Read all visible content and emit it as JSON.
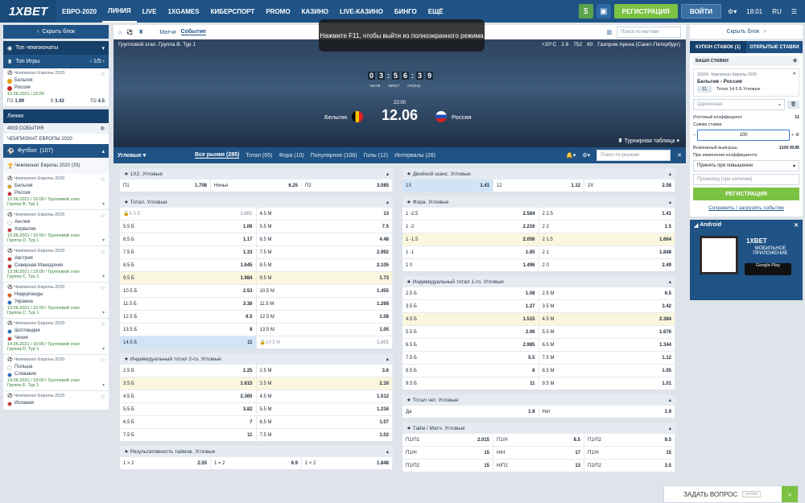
{
  "brand": {
    "logo": "1XBET",
    "accent": "#1f5385",
    "green": "#7cc243"
  },
  "nav": [
    "ЕВРО-2020",
    "ЛИНИЯ",
    "LIVE",
    "1XGAMES",
    "КИБЕРСПОРТ",
    "PROMO",
    "КАЗИНО",
    "LIVE-КАЗИНО",
    "БИНГО",
    "ЕЩЁ"
  ],
  "top": {
    "register": "РЕГИСТРАЦИЯ",
    "login": "ВОЙТИ",
    "time": "18:01",
    "lang": "RU",
    "dollar": "$"
  },
  "tooltip": "Нажмите F11, чтобы выйти из полноэкранного режима",
  "left": {
    "hide": "Скрыть блок",
    "top_champ": "Топ чемпионаты",
    "top_games": "Топ Игры",
    "pager": "1/5",
    "top_match": {
      "league": "Чемпионат Европы 2020",
      "t1": "Бельгия",
      "t2": "Россия",
      "date": "12.06.2021 / 22:00",
      "p1": "П1",
      "v1": "1.99",
      "x": "X",
      "vx": "3.42",
      "p2": "П2",
      "v2": "4.5"
    },
    "line": "Линия",
    "events": "4919 СОБЫТИЯ",
    "champ": "ЧЕМПИОНАТ ЕВРОПЫ 2020",
    "football": "Футбол",
    "football_count": "(107)",
    "euro": "Чемпионат Европы 2020",
    "euro_count": "(33)",
    "matches": [
      {
        "league": "Чемпионат Европы 2020",
        "t1": "Бельгия",
        "t2": "Россия",
        "date": "12.06.2021 / 22:00 / Групповой этап.",
        "grp": "Группа B. Тур 1"
      },
      {
        "league": "Чемпионат Европы 2020",
        "t1": "Англия",
        "t2": "Хорватия",
        "date": "13.06.2021 / 16:00 / Групповой этап.",
        "grp": "Группа D. Тур 1"
      },
      {
        "league": "Чемпионат Европы 2020",
        "t1": "Австрия",
        "t2": "Северная Македония",
        "date": "13.06.2021 / 19:00 / Групповой этап.",
        "grp": "Группа C. Тур 1"
      },
      {
        "league": "Чемпионат Европы 2020",
        "t1": "Нидерланды",
        "t2": "Украина",
        "date": "13.06.2021 / 22:00 / Групповой этап.",
        "grp": "Группа C. Тур 1"
      },
      {
        "league": "Чемпионат Европы 2020",
        "t1": "Шотландия",
        "t2": "Чехия",
        "date": "14.06.2021 / 16:00 / Групповой этап.",
        "grp": "Группа D. Тур 1"
      },
      {
        "league": "Чемпионат Европы 2020",
        "t1": "Польша",
        "t2": "Словакия",
        "date": "14.06.2021 / 19:00 / Групповой этап.",
        "grp": "Группа E. Тур 1"
      },
      {
        "league": "Чемпионат Европы 2020",
        "t1": "Испания",
        "t2": "",
        "date": "",
        "grp": ""
      }
    ]
  },
  "event": {
    "tab1": "Матчи",
    "tab2": "Событие",
    "search": "Поиск по матчам",
    "stage": "Групповой этап. Группа B. Тур 1",
    "temp": "+20°C",
    "wind": "2.8",
    "press": "752",
    "hum": "60",
    "stadium": "Газпром Арена (Санкт-Петербург)",
    "timer": [
      "0",
      "3",
      "5",
      "6",
      "3",
      "9"
    ],
    "tlabels": [
      "часов",
      "минут",
      "секунд"
    ],
    "time": "22:00",
    "date": "12.06",
    "t1": "Бельгия",
    "t2": "Россия",
    "table": "Турнирная таблица"
  },
  "markets": {
    "title": "Угловые",
    "tabs": [
      "Все рынки (285)",
      "Тотал (65)",
      "Фора (10)",
      "Популярное (108)",
      "Голы (12)",
      "Интервалы (28)"
    ],
    "search": "Поиск по рынкам"
  },
  "left_blocks": [
    {
      "title": "1Х2. Угловые",
      "rows": [
        [
          [
            "П1",
            "1.708",
            ""
          ],
          [
            "Ничья",
            "6.25",
            ""
          ],
          [
            "П2",
            "3.085",
            ""
          ]
        ]
      ]
    },
    {
      "title": "Тотал. Угловые",
      "rows": [
        [
          [
            "4.5 Б",
            "1.001",
            "ds"
          ],
          [
            "4.5 М",
            "13",
            ""
          ]
        ],
        [
          [
            "5.5 Б",
            "1.06",
            ""
          ],
          [
            "5.5 М",
            "7.5",
            ""
          ]
        ],
        [
          [
            "6.5 Б",
            "1.17",
            ""
          ],
          [
            "6.5 М",
            "4.48",
            ""
          ]
        ],
        [
          [
            "7.5 Б",
            "1.33",
            ""
          ],
          [
            "7.5 М",
            "2.992",
            ""
          ]
        ],
        [
          [
            "8.5 Б",
            "1.645",
            ""
          ],
          [
            "8.5 М",
            "2.105",
            ""
          ]
        ],
        [
          [
            "9.5 Б",
            "1.984",
            "hl"
          ],
          [
            "9.5 М",
            "1.73",
            "hl"
          ]
        ],
        [
          [
            "10.5 Б",
            "2.53",
            ""
          ],
          [
            "10.5 М",
            "1.455",
            ""
          ]
        ],
        [
          [
            "11.5 Б",
            "3.38",
            ""
          ],
          [
            "11.5 М",
            "1.268",
            ""
          ]
        ],
        [
          [
            "12.5 Б",
            "6.5",
            ""
          ],
          [
            "12.5 М",
            "1.08",
            ""
          ]
        ],
        [
          [
            "13.5 Б",
            "8",
            ""
          ],
          [
            "13.5 М",
            "1.05",
            ""
          ]
        ],
        [
          [
            "14.5 Б",
            "11",
            "sel"
          ],
          [
            "14.5 М",
            "1.001",
            "ds"
          ]
        ]
      ]
    },
    {
      "title": "Индивидуальный тотал 2-го. Угловые",
      "rows": [
        [
          [
            "2.5 Б",
            "1.25",
            ""
          ],
          [
            "2.5 М",
            "3.6",
            ""
          ]
        ],
        [
          [
            "3.5 Б",
            "1.615",
            "hl"
          ],
          [
            "3.5 М",
            "2.16",
            "hl"
          ]
        ],
        [
          [
            "4.5 Б",
            "2.365",
            ""
          ],
          [
            "4.5 М",
            "1.512",
            ""
          ]
        ],
        [
          [
            "5.5 Б",
            "3.82",
            ""
          ],
          [
            "5.5 М",
            "1.216",
            ""
          ]
        ],
        [
          [
            "6.5 Б",
            "7",
            ""
          ],
          [
            "6.5 М",
            "1.07",
            ""
          ]
        ],
        [
          [
            "7.5 Б",
            "11",
            ""
          ],
          [
            "7.5 М",
            "1.02",
            ""
          ]
        ]
      ]
    },
    {
      "title": "Результативность таймов. Угловые",
      "rows": [
        [
          [
            "1 > 2",
            "2.55",
            ""
          ],
          [
            "1 = 2",
            "6.9",
            ""
          ],
          [
            "1 < 2",
            "1.848",
            ""
          ]
        ]
      ]
    }
  ],
  "right_blocks": [
    {
      "title": "Двойной шанс. Угловые",
      "rows": [
        [
          [
            "1Х",
            "1.41",
            "sel"
          ],
          [
            "12",
            "1.12",
            ""
          ],
          [
            "2Х",
            "2.08",
            ""
          ]
        ]
      ]
    },
    {
      "title": "Фора. Угловые",
      "rows": [
        [
          [
            "1 -2.5",
            "2.584",
            ""
          ],
          [
            "2 2.5",
            "1.41",
            ""
          ]
        ],
        [
          [
            "1 -2",
            "2.216",
            ""
          ],
          [
            "2 2",
            "1.5",
            ""
          ]
        ],
        [
          [
            "1 -1.5",
            "2.056",
            "hl"
          ],
          [
            "2 1.5",
            "1.664",
            "hl"
          ]
        ],
        [
          [
            "1 -1",
            "1.65",
            ""
          ],
          [
            "2 1",
            "1.848",
            ""
          ]
        ],
        [
          [
            "1 0",
            "1.496",
            ""
          ],
          [
            "2 0",
            "2.49",
            ""
          ]
        ]
      ]
    },
    {
      "title": "Индивидуальный тотал 1-го. Угловые",
      "rows": [
        [
          [
            "2.5 Б",
            "1.08",
            ""
          ],
          [
            "2.5 М",
            "6.5",
            ""
          ]
        ],
        [
          [
            "3.5 Б",
            "1.27",
            ""
          ],
          [
            "3.5 М",
            "3.42",
            ""
          ]
        ],
        [
          [
            "4.5 Б",
            "1.515",
            "hl"
          ],
          [
            "4.5 М",
            "2.384",
            "hl"
          ]
        ],
        [
          [
            "5.5 Б",
            "2.06",
            ""
          ],
          [
            "5.5 М",
            "1.676",
            ""
          ]
        ],
        [
          [
            "6.5 Б",
            "2.985",
            ""
          ],
          [
            "6.5 М",
            "1.344",
            ""
          ]
        ],
        [
          [
            "7.5 Б",
            "5.5",
            ""
          ],
          [
            "7.5 М",
            "1.12",
            ""
          ]
        ],
        [
          [
            "8.5 Б",
            "8",
            ""
          ],
          [
            "8.5 М",
            "1.05",
            ""
          ]
        ],
        [
          [
            "9.5 Б",
            "11",
            ""
          ],
          [
            "9.5 М",
            "1.01",
            ""
          ]
        ]
      ]
    },
    {
      "title": "Тотал чет. Угловые",
      "rows": [
        [
          [
            "Да",
            "1.9",
            ""
          ],
          [
            "Нет",
            "1.9",
            ""
          ]
        ]
      ]
    },
    {
      "title": "Тайм / Матч. Угловые",
      "rows": [
        [
          [
            "П1/П1",
            "2.015",
            ""
          ],
          [
            "П1/Н",
            "8.5",
            ""
          ],
          [
            "П1/П2",
            "9.5",
            ""
          ]
        ],
        [
          [
            "П1/Н",
            "15",
            ""
          ],
          [
            "Н/Н",
            "17",
            ""
          ],
          [
            "П1/Н",
            "15",
            ""
          ]
        ],
        [
          [
            "П1/П2",
            "15",
            ""
          ],
          [
            "Н/П2",
            "13",
            ""
          ],
          [
            "П2/П2",
            "3.5",
            ""
          ]
        ]
      ]
    }
  ],
  "coupon": {
    "hide": "Скрыть блок",
    "tab1": "КУПОН СТАВОК (1)",
    "tab2": "ОТКРЫТЫЕ СТАВКИ",
    "your_bets": "ВАШИ СТАВКИ",
    "bet_league": "16334. Чемпионат Европы 2020",
    "bet_match": "Бельгия - Россия",
    "bet_num": "11",
    "bet_name": "Тотал 14.5 Б Угловые",
    "type": "Одиночная",
    "coef_label": "Итоговый коэффициент",
    "coef": "11",
    "sum_label": "Сумма ставки",
    "sum": "100",
    "win_label": "Возможный выигрыш",
    "win": "1100 RUB",
    "change_label": "При изменении коэффициента:",
    "change": "Принять при повышении",
    "promo": "Промокод (при наличии)",
    "register": "РЕГИСТРАЦИЯ",
    "save": "Сохранить / загрузить событие"
  },
  "app": {
    "os": "Android",
    "brand": "1XBET",
    "title": "МОБИЛЬНОЕ ПРИЛОЖЕНИЕ",
    "store": "Google Play",
    "get": "ДОСТУПНО В"
  },
  "ask": {
    "label": "ЗАДАТЬ ВОПРОС",
    "status": "on-line"
  }
}
